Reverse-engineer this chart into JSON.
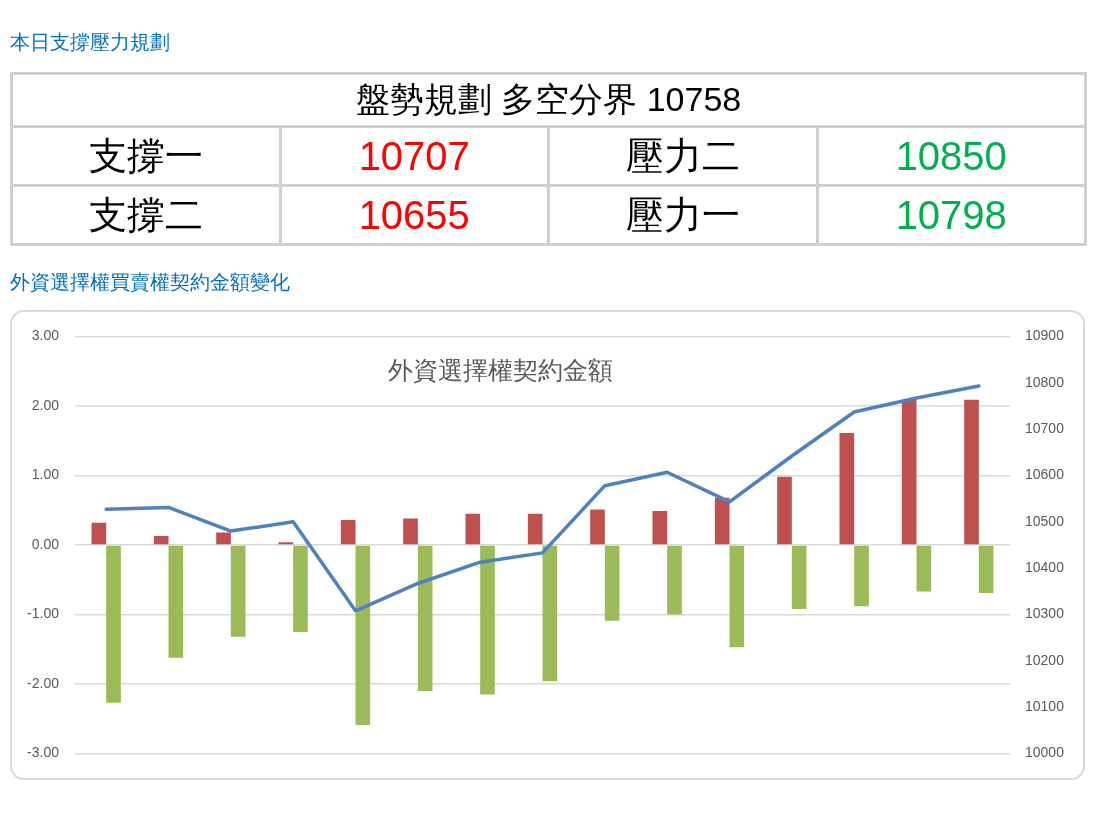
{
  "chart_data": [
    {
      "type": "other",
      "title": "本日支撐壓力規劃",
      "subtitle": "盤勢規劃 多空分界 10758",
      "categories": [
        "支撐一",
        "壓力二",
        "支撐二",
        "壓力一"
      ],
      "values": [
        10707,
        10850,
        10655,
        10798
      ],
      "colors": [
        "#ff0000",
        "#00b050",
        "#ff0000",
        "#00b050"
      ],
      "data_labels": true
    },
    {
      "type": "bar",
      "title": "外資選擇權契約金額",
      "annotations": [
        "外資選擇權買賣權契約金額變化"
      ],
      "categories": [
        null,
        null,
        null,
        null,
        null,
        null,
        null,
        null,
        null,
        null,
        null,
        null,
        null,
        null,
        null
      ],
      "series": [
        {
          "type": "bar",
          "color": "#c0504d",
          "values": [
            0.32,
            0.13,
            0.18,
            0.04,
            0.36,
            0.38,
            0.45,
            0.45,
            0.51,
            0.49,
            0.68,
            0.98,
            1.61,
            2.09,
            2.09
          ]
        },
        {
          "type": "bar",
          "color": "#9bbb59",
          "values": [
            -2.27,
            -1.62,
            -1.32,
            -1.25,
            -2.59,
            -2.1,
            -2.15,
            -1.96,
            -1.09,
            -1.0,
            -1.47,
            -0.92,
            -0.88,
            -0.67,
            -0.69
          ]
        },
        {
          "type": "line",
          "axis": "y2",
          "color": "#4f81bd",
          "values": [
            10527,
            10531,
            10480,
            10500,
            10308,
            10367,
            10413,
            10433,
            10578,
            10607,
            10543,
            10642,
            10737,
            10767,
            10793
          ]
        }
      ],
      "ylim": [
        -3,
        3
      ],
      "yticks": [
        {
          "value": -3,
          "label": "-3.00"
        },
        {
          "value": -2,
          "label": "-2.00"
        },
        {
          "value": -1,
          "label": "-1.00"
        },
        {
          "value": 0,
          "label": "0.00"
        },
        {
          "value": 1,
          "label": "1.00"
        },
        {
          "value": 2,
          "label": "2.00"
        },
        {
          "value": 3,
          "label": "3.00"
        }
      ],
      "y2lim": [
        10000,
        10900
      ],
      "y2ticks": [
        10000,
        10100,
        10200,
        10300,
        10400,
        10500,
        10600,
        10700,
        10800,
        10900
      ],
      "grid": "y"
    }
  ]
}
